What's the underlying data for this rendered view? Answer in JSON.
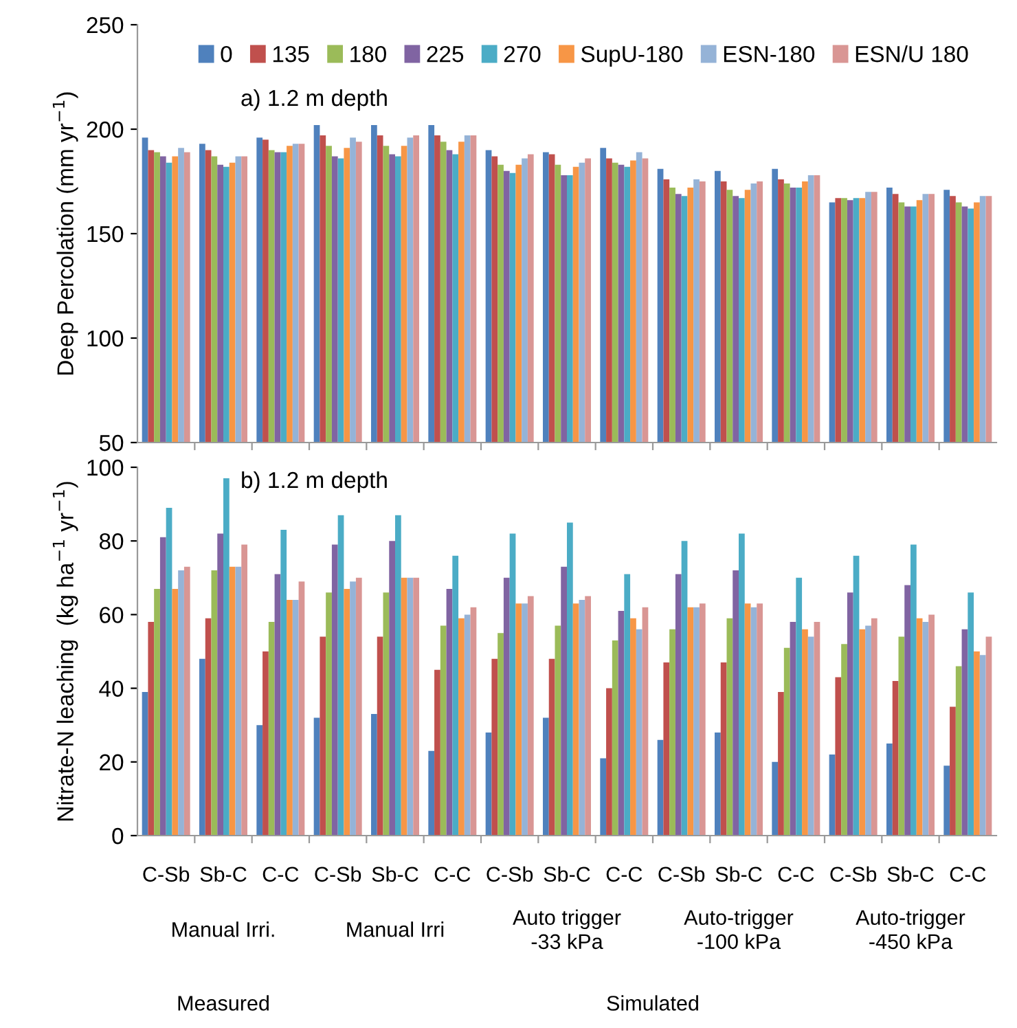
{
  "chart_data": [
    {
      "type": "bar",
      "ylabel": "Deep Percolation (mm yr$^{−1}$)",
      "ylim": [
        50,
        250
      ],
      "yticks": [
        50,
        100,
        150,
        200,
        250
      ],
      "tick_labels": "y",
      "legend": "top",
      "grid": false,
      "annotations": [
        "a) 1.2 m depth"
      ],
      "series": [
        {
          "name": "0",
          "color": "#4f81bd",
          "values": [
            196,
            193,
            196,
            202,
            202,
            202,
            190,
            189,
            191,
            181,
            180,
            181,
            165,
            172,
            171
          ]
        },
        {
          "name": "135",
          "color": "#c0504d",
          "values": [
            190,
            190,
            195,
            197,
            197,
            197,
            187,
            188,
            186,
            176,
            175,
            176,
            167,
            169,
            168
          ]
        },
        {
          "name": "180",
          "color": "#9bbb59",
          "values": [
            189,
            187,
            190,
            192,
            192,
            194,
            183,
            183,
            184,
            172,
            171,
            174,
            167,
            165,
            165
          ]
        },
        {
          "name": "225",
          "color": "#8064a2",
          "values": [
            187,
            183,
            189,
            187,
            188,
            190,
            180,
            178,
            183,
            169,
            168,
            172,
            166,
            163,
            163
          ]
        },
        {
          "name": "270",
          "color": "#4bacc6",
          "values": [
            184,
            182,
            189,
            186,
            187,
            188,
            179,
            178,
            182,
            168,
            167,
            172,
            167,
            163,
            162
          ]
        },
        {
          "name": "SupU-180",
          "color": "#f79646",
          "values": [
            187,
            184,
            192,
            191,
            192,
            194,
            183,
            182,
            185,
            172,
            171,
            175,
            167,
            166,
            165
          ]
        },
        {
          "name": "ESN-180",
          "color": "#95b3d7",
          "values": [
            191,
            187,
            193,
            196,
            196,
            197,
            186,
            184,
            189,
            176,
            174,
            178,
            170,
            169,
            168
          ]
        },
        {
          "name": "ESN/U 180",
          "color": "#d99694",
          "values": [
            189,
            187,
            193,
            194,
            197,
            197,
            188,
            186,
            186,
            175,
            175,
            178,
            170,
            169,
            168
          ]
        }
      ]
    },
    {
      "type": "bar",
      "ylabel": "Nitrate-N leaching  (kg ha$^{−1}$ yr$^{−1}$)",
      "ylim": [
        0,
        100
      ],
      "yticks": [
        0,
        20,
        40,
        60,
        80,
        100
      ],
      "legend": false,
      "grid": false,
      "categories": [
        "C-Sb",
        "Sb-C",
        "C-C",
        "C-Sb",
        "Sb-C",
        "C-C",
        "C-Sb",
        "Sb-C",
        "C-C",
        "C-Sb",
        "Sb-C",
        "C-C",
        "C-Sb",
        "Sb-C",
        "C-C"
      ],
      "annotations": [
        "b) 1.2 m depth",
        "Manual Irri.",
        "Manual Irri",
        "Auto trigger\n-33 kPa",
        "Auto-trigger\n-100 kPa",
        "Auto-trigger\n-450 kPa",
        "Measured",
        "Simulated"
      ],
      "series": [
        {
          "color": "#4f81bd",
          "values": [
            39,
            48,
            30,
            32,
            33,
            23,
            28,
            32,
            21,
            26,
            28,
            20,
            22,
            25,
            19
          ]
        },
        {
          "color": "#c0504d",
          "values": [
            58,
            59,
            50,
            54,
            54,
            45,
            48,
            48,
            40,
            47,
            47,
            39,
            43,
            42,
            35
          ]
        },
        {
          "color": "#9bbb59",
          "values": [
            67,
            72,
            58,
            66,
            66,
            57,
            55,
            57,
            53,
            56,
            59,
            51,
            52,
            54,
            46
          ]
        },
        {
          "color": "#8064a2",
          "values": [
            81,
            82,
            71,
            79,
            80,
            67,
            70,
            73,
            61,
            71,
            72,
            58,
            66,
            68,
            56
          ]
        },
        {
          "color": "#4bacc6",
          "values": [
            89,
            97,
            83,
            87,
            87,
            76,
            82,
            85,
            71,
            80,
            82,
            70,
            76,
            79,
            66
          ]
        },
        {
          "color": "#f79646",
          "values": [
            67,
            73,
            64,
            67,
            70,
            59,
            63,
            63,
            59,
            62,
            63,
            56,
            56,
            59,
            50
          ]
        },
        {
          "color": "#95b3d7",
          "values": [
            72,
            73,
            64,
            69,
            70,
            60,
            63,
            64,
            56,
            62,
            62,
            54,
            57,
            58,
            49
          ]
        },
        {
          "color": "#d99694",
          "values": [
            73,
            79,
            69,
            70,
            70,
            62,
            65,
            65,
            62,
            63,
            63,
            58,
            59,
            60,
            54
          ]
        }
      ]
    }
  ]
}
